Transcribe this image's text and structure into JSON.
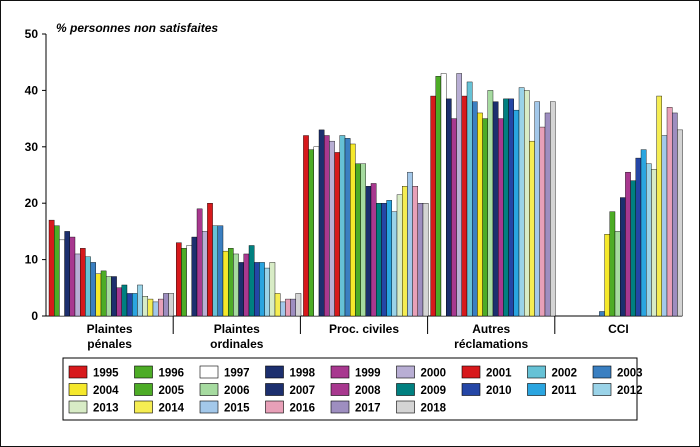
{
  "chart_data": {
    "type": "bar",
    "ylabel": "% personnes non satisfaites",
    "ylim": [
      0,
      50
    ],
    "yticks": [
      0,
      10,
      20,
      30,
      40,
      50
    ],
    "grid": false,
    "legend_position": "bottom",
    "categories": [
      [
        "Plaintes",
        "pénales"
      ],
      [
        "Plaintes",
        "ordinales"
      ],
      [
        "Proc. civiles"
      ],
      [
        "Autres",
        "réclamations"
      ],
      [
        "CCI"
      ]
    ],
    "series": [
      {
        "name": "1995",
        "color": "#d7191c",
        "values": [
          17,
          13,
          32,
          39,
          null
        ]
      },
      {
        "name": "1996",
        "color": "#4dac26",
        "values": [
          16,
          12,
          29.5,
          42.5,
          null
        ]
      },
      {
        "name": "1997",
        "color": "#ffffff",
        "values": [
          13.5,
          12.5,
          30,
          43,
          null
        ]
      },
      {
        "name": "1998",
        "color": "#1c2f6e",
        "values": [
          15,
          14,
          33,
          38.5,
          null
        ]
      },
      {
        "name": "1999",
        "color": "#a8388f",
        "values": [
          14,
          19,
          32,
          35,
          null
        ]
      },
      {
        "name": "2000",
        "color": "#b8aed4",
        "values": [
          11,
          15,
          31,
          43,
          null
        ]
      },
      {
        "name": "2001",
        "color": "#d7191c",
        "values": [
          12,
          20,
          29,
          39,
          null
        ]
      },
      {
        "name": "2002",
        "color": "#66c2d6",
        "values": [
          10.5,
          16,
          32,
          41.5,
          null
        ]
      },
      {
        "name": "2003",
        "color": "#3a7fc1",
        "values": [
          9.5,
          16,
          31.5,
          38,
          0.8
        ]
      },
      {
        "name": "2004",
        "color": "#f5e82b",
        "values": [
          7.5,
          11.5,
          30.5,
          36,
          14.5
        ]
      },
      {
        "name": "2005",
        "color": "#4dac26",
        "values": [
          8,
          12,
          27,
          35,
          18.5
        ]
      },
      {
        "name": "2006",
        "color": "#a6dba0",
        "values": [
          7,
          11,
          27,
          40,
          15
        ]
      },
      {
        "name": "2007",
        "color": "#1c2f6e",
        "values": [
          7,
          9.5,
          23,
          38,
          21
        ]
      },
      {
        "name": "2008",
        "color": "#a8388f",
        "values": [
          5,
          11,
          23.5,
          35,
          25.5
        ]
      },
      {
        "name": "2009",
        "color": "#008080",
        "values": [
          5.5,
          12.5,
          20,
          38.5,
          24
        ]
      },
      {
        "name": "2010",
        "color": "#2446a6",
        "values": [
          4,
          9.5,
          20,
          38.5,
          28
        ]
      },
      {
        "name": "2011",
        "color": "#2aa5e0",
        "values": [
          4,
          9.5,
          20.5,
          36.5,
          29.5
        ]
      },
      {
        "name": "2012",
        "color": "#9ad3e8",
        "values": [
          5.5,
          8.5,
          18.5,
          40.5,
          27
        ]
      },
      {
        "name": "2013",
        "color": "#d8ecc6",
        "values": [
          3.5,
          9.5,
          21.5,
          40,
          26
        ]
      },
      {
        "name": "2014",
        "color": "#f5ed52",
        "values": [
          3,
          4,
          23,
          31,
          39
        ]
      },
      {
        "name": "2015",
        "color": "#a3c8ea",
        "values": [
          2.5,
          2.5,
          25.5,
          38,
          32
        ]
      },
      {
        "name": "2016",
        "color": "#e8a0b8",
        "values": [
          3,
          3,
          23,
          33.5,
          37
        ]
      },
      {
        "name": "2017",
        "color": "#9e8ec0",
        "values": [
          4,
          3,
          20,
          36,
          36
        ]
      },
      {
        "name": "2018",
        "color": "#d4d4d4",
        "values": [
          4,
          4,
          20,
          38,
          33
        ]
      }
    ]
  }
}
